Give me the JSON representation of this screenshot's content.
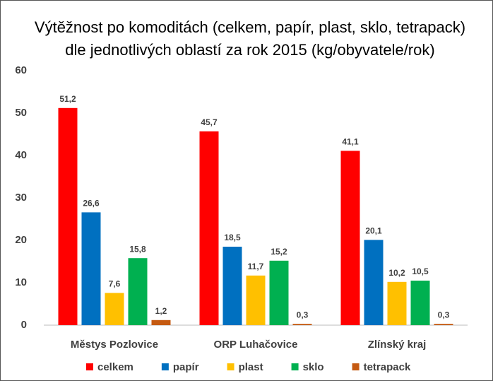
{
  "chart_data": {
    "type": "bar",
    "title": [
      "Výtěžnost po komoditách (celkem, papír, plast, sklo, tetrapack)",
      "dle jednotlivých oblastí za rok 2015 (kg/obyvatele/rok)"
    ],
    "categories": [
      "Městys Pozlovice",
      "ORP Luhačovice",
      "Zlínský kraj"
    ],
    "series": [
      {
        "name": "celkem",
        "color": "#ff0000",
        "values": [
          51.2,
          45.7,
          41.1
        ],
        "value_labels": [
          "51,2",
          "45,7",
          "41,1"
        ]
      },
      {
        "name": "papír",
        "color": "#0070c0",
        "values": [
          26.6,
          18.5,
          20.1
        ],
        "value_labels": [
          "26,6",
          "18,5",
          "20,1"
        ]
      },
      {
        "name": "plast",
        "color": "#ffc000",
        "values": [
          7.6,
          11.7,
          10.2
        ],
        "value_labels": [
          "7,6",
          "11,7",
          "10,2"
        ]
      },
      {
        "name": "sklo",
        "color": "#00b050",
        "values": [
          15.8,
          15.2,
          10.5
        ],
        "value_labels": [
          "15,8",
          "15,2",
          "10,5"
        ]
      },
      {
        "name": "tetrapack",
        "color": "#c55a11",
        "values": [
          1.2,
          0.3,
          0.3
        ],
        "value_labels": [
          "1,2",
          "0,3",
          "0,3"
        ]
      }
    ],
    "ylim": [
      0,
      60
    ],
    "yticks": [
      0,
      10,
      20,
      30,
      40,
      50,
      60
    ],
    "grid": false,
    "legend": "bottom"
  }
}
